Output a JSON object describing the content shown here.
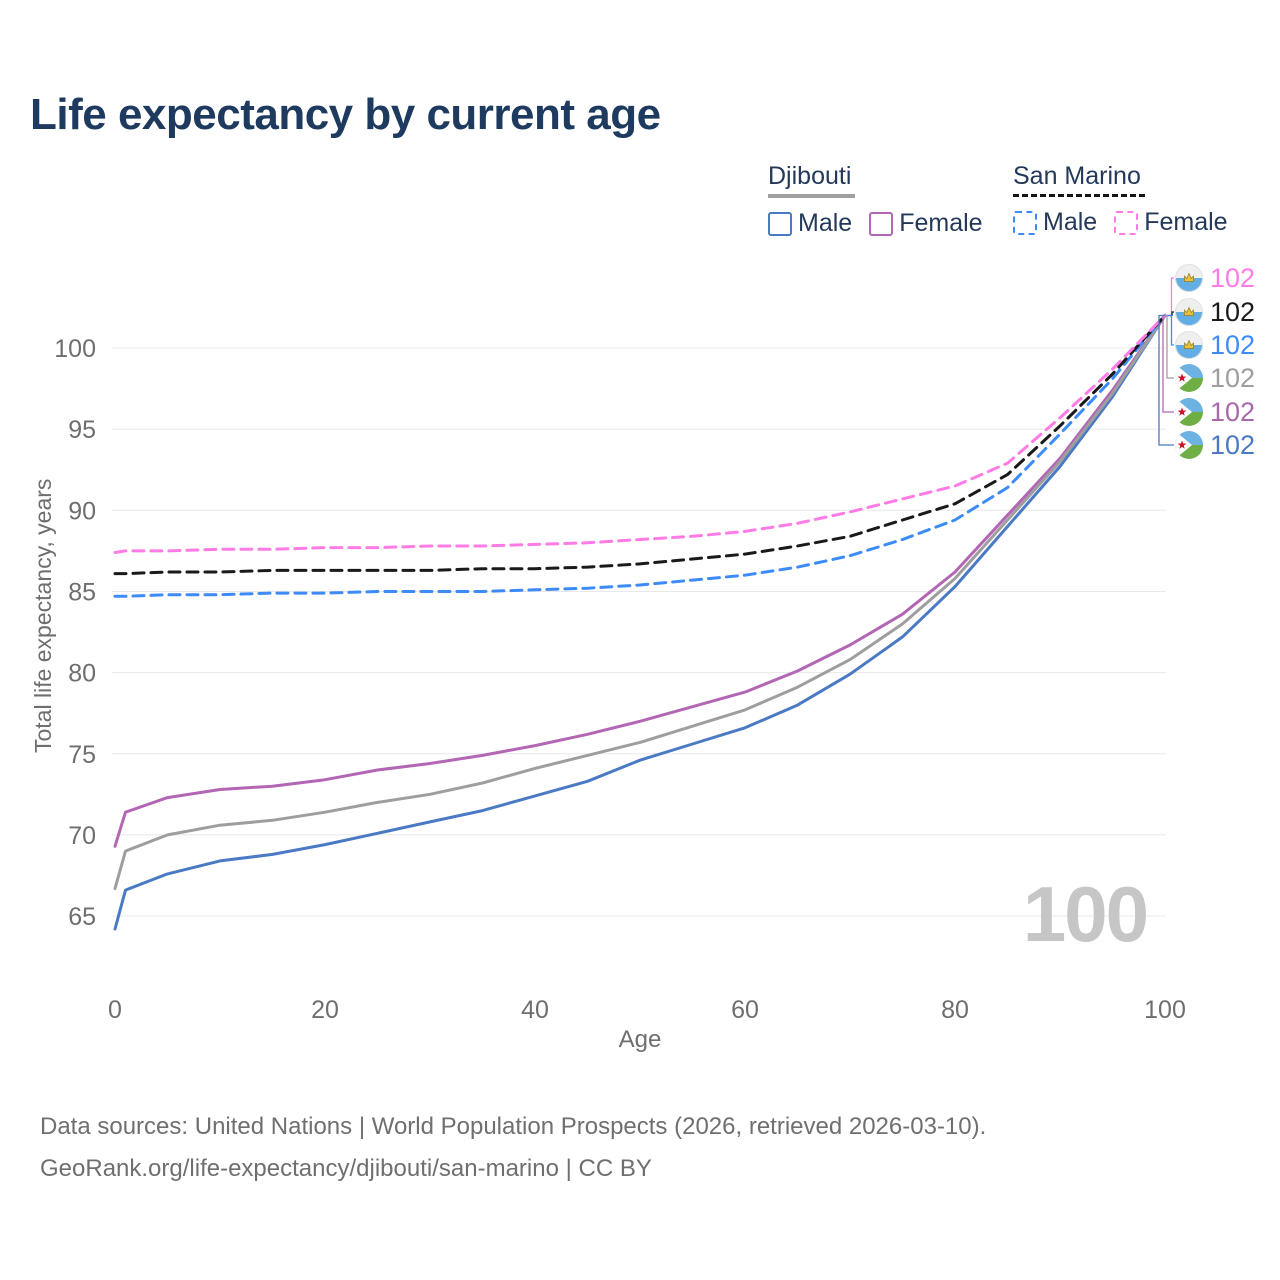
{
  "title": "Life expectancy by current age",
  "legend": {
    "groups": [
      {
        "name": "Djibouti",
        "line_color": "#a0a0a0",
        "line_style": "solid",
        "items": [
          {
            "label": "Male",
            "color": "#4a7ac4",
            "box_style": "solid"
          },
          {
            "label": "Female",
            "color": "#b366b3",
            "box_style": "solid"
          }
        ]
      },
      {
        "name": "San Marino",
        "line_color": "#141414",
        "line_style": "dashed",
        "items": [
          {
            "label": "Male",
            "color": "#3d8bf8",
            "box_style": "dashed"
          },
          {
            "label": "Female",
            "color": "#ff7ce6",
            "box_style": "dashed"
          }
        ]
      }
    ]
  },
  "footer": {
    "line1": "Data sources: United Nations | World Population Prospects (2026, retrieved 2026-03-10).",
    "line2": "GeoRank.org/life-expectancy/djibouti/san-marino | CC BY"
  },
  "chart_data": {
    "type": "line",
    "title": "Life expectancy by current age",
    "xlabel": "Age",
    "ylabel": "Total life expectancy, years",
    "x_ticks": [
      0,
      20,
      40,
      60,
      80,
      100
    ],
    "y_ticks": [
      65,
      70,
      75,
      80,
      85,
      90,
      95,
      100
    ],
    "xlim": [
      0,
      100
    ],
    "ylim": [
      63,
      103
    ],
    "grid": "horizontal",
    "watermark": "100",
    "legend_position": "top-right",
    "ages": [
      0,
      1,
      5,
      10,
      15,
      20,
      25,
      30,
      35,
      40,
      45,
      50,
      55,
      60,
      65,
      70,
      75,
      80,
      85,
      90,
      95,
      100
    ],
    "series": [
      {
        "id": "sm_female",
        "country": "San Marino",
        "sex": "Female",
        "color": "#ff7ce6",
        "label_color": "#ff7ce6",
        "dashed": true,
        "flag": "san-marino",
        "end_label": "102",
        "values": [
          87.4,
          87.5,
          87.5,
          87.6,
          87.6,
          87.7,
          87.7,
          87.8,
          87.8,
          87.9,
          88.0,
          88.2,
          88.4,
          88.7,
          89.2,
          89.9,
          90.7,
          91.5,
          92.9,
          95.7,
          98.7,
          102
        ]
      },
      {
        "id": "sm_total",
        "country": "San Marino",
        "sex": "Both sexes",
        "color": "#1a1a1a",
        "label_color": "#1a1a1a",
        "dashed": true,
        "flag": "san-marino",
        "end_label": "102",
        "values": [
          86.1,
          86.1,
          86.2,
          86.2,
          86.3,
          86.3,
          86.3,
          86.3,
          86.4,
          86.4,
          86.5,
          86.7,
          87.0,
          87.3,
          87.8,
          88.4,
          89.4,
          90.4,
          92.2,
          95.2,
          98.4,
          102
        ]
      },
      {
        "id": "sm_male",
        "country": "San Marino",
        "sex": "Male",
        "color": "#3d8bf8",
        "label_color": "#3d8bf8",
        "dashed": true,
        "flag": "san-marino",
        "end_label": "102",
        "values": [
          84.7,
          84.7,
          84.8,
          84.8,
          84.9,
          84.9,
          85.0,
          85.0,
          85.0,
          85.1,
          85.2,
          85.4,
          85.7,
          86.0,
          86.5,
          87.2,
          88.2,
          89.4,
          91.4,
          94.7,
          98.1,
          102
        ]
      },
      {
        "id": "dj_total",
        "country": "Djibouti",
        "sex": "Both sexes",
        "color": "#9e9e9e",
        "label_color": "#9e9e9e",
        "dashed": false,
        "flag": "djibouti",
        "end_label": "102",
        "values": [
          66.7,
          69.0,
          70.0,
          70.6,
          70.9,
          71.4,
          72.0,
          72.5,
          73.2,
          74.1,
          74.9,
          75.7,
          76.7,
          77.7,
          79.1,
          80.8,
          83.0,
          85.8,
          89.4,
          93.0,
          97.2,
          102
        ]
      },
      {
        "id": "dj_female",
        "country": "Djibouti",
        "sex": "Female",
        "color": "#b366b3",
        "label_color": "#ab67ad",
        "dashed": false,
        "flag": "djibouti",
        "end_label": "102",
        "values": [
          69.3,
          71.4,
          72.3,
          72.8,
          73.0,
          73.4,
          74.0,
          74.4,
          74.9,
          75.5,
          76.2,
          77.0,
          77.9,
          78.8,
          80.1,
          81.7,
          83.6,
          86.2,
          89.7,
          93.2,
          97.4,
          102
        ]
      },
      {
        "id": "dj_male",
        "country": "Djibouti",
        "sex": "Male",
        "color": "#4a7ac4",
        "label_color": "#4a79c5",
        "dashed": false,
        "flag": "djibouti",
        "end_label": "102",
        "values": [
          64.2,
          66.6,
          67.6,
          68.4,
          68.8,
          69.4,
          70.1,
          70.8,
          71.5,
          72.4,
          73.3,
          74.6,
          75.6,
          76.6,
          78.0,
          79.9,
          82.2,
          85.3,
          89.0,
          92.7,
          97.0,
          102
        ]
      }
    ]
  }
}
